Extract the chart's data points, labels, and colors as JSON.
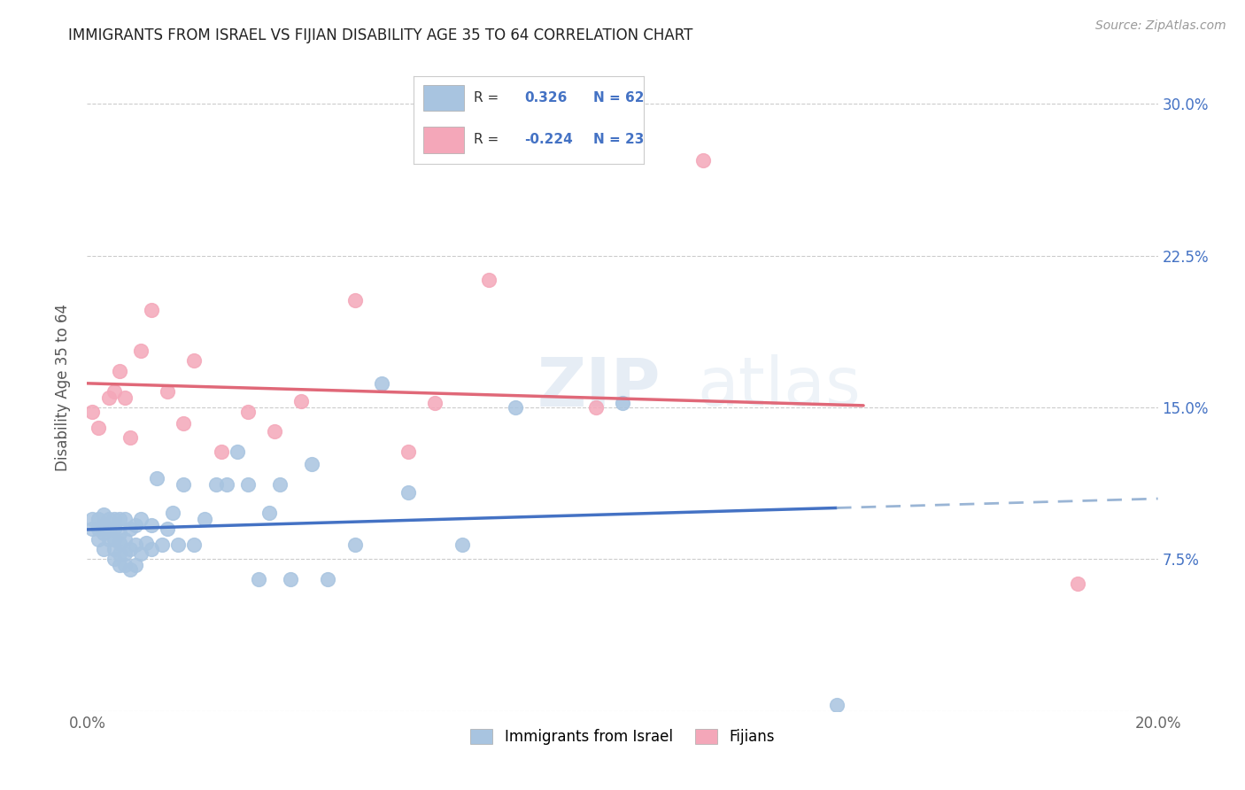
{
  "title": "IMMIGRANTS FROM ISRAEL VS FIJIAN DISABILITY AGE 35 TO 64 CORRELATION CHART",
  "source": "Source: ZipAtlas.com",
  "ylabel": "Disability Age 35 to 64",
  "xlim": [
    0.0,
    0.2
  ],
  "ylim": [
    0.0,
    0.32
  ],
  "xticks": [
    0.0,
    0.04,
    0.08,
    0.12,
    0.16,
    0.2
  ],
  "xticklabels": [
    "0.0%",
    "",
    "",
    "",
    "",
    "20.0%"
  ],
  "yticks": [
    0.0,
    0.075,
    0.15,
    0.225,
    0.3
  ],
  "yticklabels_right": [
    "",
    "7.5%",
    "15.0%",
    "22.5%",
    "30.0%"
  ],
  "israel_color": "#a8c4e0",
  "fijian_color": "#f4a7b9",
  "israel_line_color": "#4472c4",
  "fijian_line_color": "#e06878",
  "gray_dash_color": "#9ab5d5",
  "israel_R": 0.326,
  "israel_N": 62,
  "fijian_R": -0.224,
  "fijian_N": 23,
  "legend_R_color": "#4472c4",
  "watermark": "ZIPatlas",
  "israel_line_x_end": 0.14,
  "fijian_line_x_end": 0.145,
  "israel_scatter_x": [
    0.001,
    0.001,
    0.002,
    0.002,
    0.002,
    0.003,
    0.003,
    0.003,
    0.003,
    0.004,
    0.004,
    0.004,
    0.005,
    0.005,
    0.005,
    0.005,
    0.005,
    0.006,
    0.006,
    0.006,
    0.006,
    0.006,
    0.007,
    0.007,
    0.007,
    0.007,
    0.008,
    0.008,
    0.008,
    0.009,
    0.009,
    0.009,
    0.01,
    0.01,
    0.011,
    0.012,
    0.012,
    0.013,
    0.014,
    0.015,
    0.016,
    0.017,
    0.018,
    0.02,
    0.022,
    0.024,
    0.026,
    0.028,
    0.03,
    0.032,
    0.034,
    0.036,
    0.038,
    0.042,
    0.045,
    0.05,
    0.055,
    0.06,
    0.07,
    0.08,
    0.1,
    0.14
  ],
  "israel_scatter_y": [
    0.09,
    0.095,
    0.085,
    0.09,
    0.095,
    0.08,
    0.088,
    0.092,
    0.097,
    0.085,
    0.09,
    0.095,
    0.075,
    0.08,
    0.085,
    0.09,
    0.095,
    0.072,
    0.078,
    0.083,
    0.088,
    0.095,
    0.072,
    0.078,
    0.085,
    0.095,
    0.07,
    0.08,
    0.09,
    0.072,
    0.082,
    0.092,
    0.078,
    0.095,
    0.083,
    0.08,
    0.092,
    0.115,
    0.082,
    0.09,
    0.098,
    0.082,
    0.112,
    0.082,
    0.095,
    0.112,
    0.112,
    0.128,
    0.112,
    0.065,
    0.098,
    0.112,
    0.065,
    0.122,
    0.065,
    0.082,
    0.162,
    0.108,
    0.082,
    0.15,
    0.152,
    0.003
  ],
  "fijian_scatter_x": [
    0.001,
    0.002,
    0.004,
    0.005,
    0.006,
    0.007,
    0.008,
    0.01,
    0.012,
    0.015,
    0.018,
    0.02,
    0.025,
    0.03,
    0.035,
    0.04,
    0.05,
    0.06,
    0.065,
    0.075,
    0.095,
    0.115,
    0.185
  ],
  "fijian_scatter_y": [
    0.148,
    0.14,
    0.155,
    0.158,
    0.168,
    0.155,
    0.135,
    0.178,
    0.198,
    0.158,
    0.142,
    0.173,
    0.128,
    0.148,
    0.138,
    0.153,
    0.203,
    0.128,
    0.152,
    0.213,
    0.15,
    0.272,
    0.063
  ]
}
